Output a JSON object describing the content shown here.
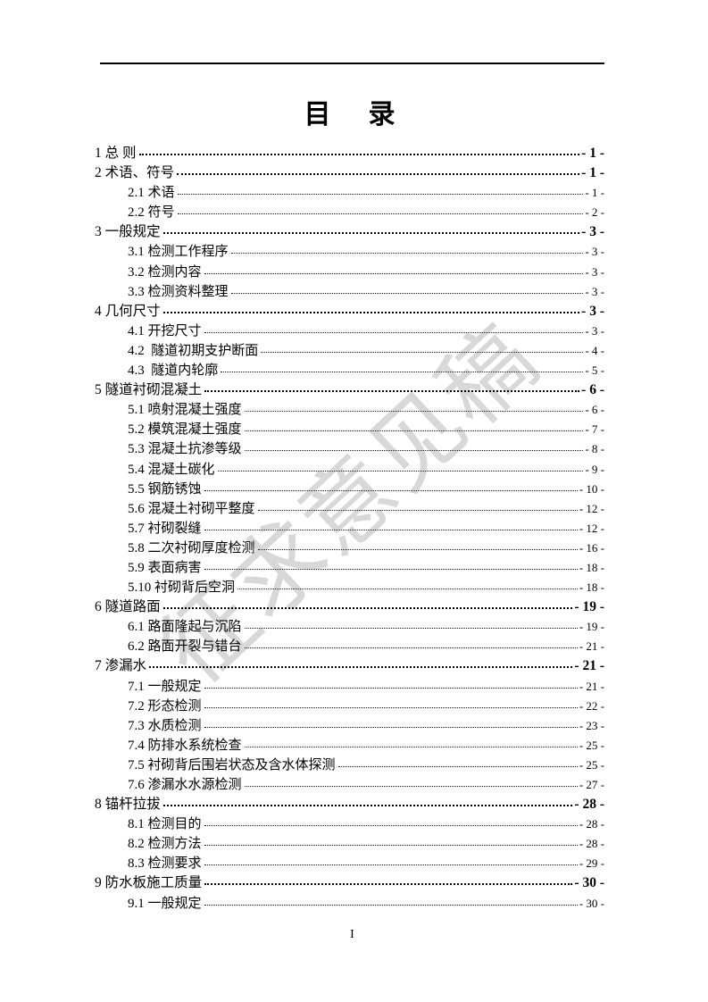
{
  "page": {
    "title": "目　录",
    "footer_page_number": "I",
    "watermark_text": "征求意见稿",
    "colors": {
      "background": "#ffffff",
      "text": "#000000",
      "rule": "#000000",
      "watermark": "#cccccc"
    }
  },
  "toc": {
    "entries": [
      {
        "level": 1,
        "label": "1 总 则",
        "page": "- 1 -"
      },
      {
        "level": 1,
        "label": "2 术语、符号",
        "page": "- 1 -"
      },
      {
        "level": 2,
        "label": "2.1 术语",
        "page": "- 1 -"
      },
      {
        "level": 2,
        "label": "2.2 符号",
        "page": "- 2 -"
      },
      {
        "level": 1,
        "label": "3 一般规定",
        "page": "- 3 -"
      },
      {
        "level": 2,
        "label": "3.1 检测工作程序",
        "page": "- 3 -"
      },
      {
        "level": 2,
        "label": "3.2 检测内容",
        "page": "- 3 -"
      },
      {
        "level": 2,
        "label": "3.3 检测资料整理",
        "page": "- 3 -"
      },
      {
        "level": 1,
        "label": "4 几何尺寸",
        "page": "- 3 -"
      },
      {
        "level": 2,
        "label": "4.1 开挖尺寸",
        "page": "- 3 -"
      },
      {
        "level": 2,
        "label": "4.2  隧道初期支护断面",
        "page": "- 4 -"
      },
      {
        "level": 2,
        "label": "4.3  隧道内轮廓",
        "page": "- 5 -"
      },
      {
        "level": 1,
        "label": "5 隧道衬砌混凝土",
        "page": "- 6 -"
      },
      {
        "level": 2,
        "label": "5.1 喷射混凝土强度",
        "page": "- 6 -"
      },
      {
        "level": 2,
        "label": "5.2 模筑混凝土强度",
        "page": "- 7 -"
      },
      {
        "level": 2,
        "label": "5.3 混凝土抗渗等级",
        "page": "- 8 -"
      },
      {
        "level": 2,
        "label": "5.4 混凝土碳化",
        "page": "- 9 -"
      },
      {
        "level": 2,
        "label": "5.5 钢筋锈蚀",
        "page": "- 10 -"
      },
      {
        "level": 2,
        "label": "5.6 混凝土衬砌平整度",
        "page": "- 12 -"
      },
      {
        "level": 2,
        "label": "5.7 衬砌裂缝",
        "page": "- 12 -"
      },
      {
        "level": 2,
        "label": "5.8 二次衬砌厚度检测",
        "page": "- 16 -"
      },
      {
        "level": 2,
        "label": "5.9 表面病害",
        "page": "- 18 -"
      },
      {
        "level": 2,
        "label": "5.10 衬砌背后空洞",
        "page": "- 18 -"
      },
      {
        "level": 1,
        "label": "6 隧道路面",
        "page": "- 19 -"
      },
      {
        "level": 2,
        "label": "6.1 路面隆起与沉陷",
        "page": "- 19 -"
      },
      {
        "level": 2,
        "label": "6.2 路面开裂与错台",
        "page": "- 21 -"
      },
      {
        "level": 1,
        "label": "7 渗漏水",
        "page": "- 21 -"
      },
      {
        "level": 2,
        "label": "7.1 一般规定",
        "page": "- 21 -"
      },
      {
        "level": 2,
        "label": "7.2 形态检测",
        "page": "- 22 -"
      },
      {
        "level": 2,
        "label": "7.3 水质检测",
        "page": "- 23 -"
      },
      {
        "level": 2,
        "label": "7.4 防排水系统检查",
        "page": "- 25 -"
      },
      {
        "level": 2,
        "label": "7.5 衬砌背后围岩状态及含水体探测",
        "page": "- 25 -"
      },
      {
        "level": 2,
        "label": "7.6 渗漏水水源检测",
        "page": "- 27 -"
      },
      {
        "level": 1,
        "label": "8 锚杆拉拔",
        "page": "- 28 -"
      },
      {
        "level": 2,
        "label": "8.1 检测目的",
        "page": "- 28 -"
      },
      {
        "level": 2,
        "label": "8.2 检测方法",
        "page": "- 28 -"
      },
      {
        "level": 2,
        "label": "8.3 检测要求",
        "page": "- 29 -"
      },
      {
        "level": 1,
        "label": "9 防水板施工质量",
        "page": "- 30 -"
      },
      {
        "level": 2,
        "label": "9.1 一般规定",
        "page": "- 30 -"
      }
    ]
  }
}
